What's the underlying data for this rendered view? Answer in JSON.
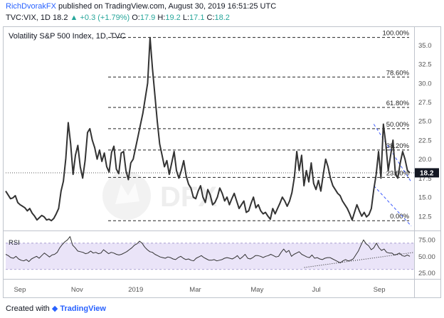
{
  "header": {
    "author": "RichDvorakFX",
    "published": "published on TradingView.com, August 30, 2019 16:51:25 UTC",
    "symbol": "TVC:VIX, 1D",
    "last": "18.2",
    "change": "+0.3 (+1.79%)",
    "o_label": "O:",
    "o_value": "17.9",
    "h_label": "H:",
    "h_value": "19.2",
    "l_label": "L:",
    "l_value": "17.1",
    "c_label": "C:",
    "c_value": "18.2"
  },
  "chart_title": "Volatility S&P 500 Index, 1D, TVC",
  "footer": {
    "created_with": "Created with",
    "brand": "TradingView"
  },
  "price_badge": "18.2",
  "colors": {
    "price_line": "#333333",
    "fib_line": "#222222",
    "trend_line": "#3d5afe",
    "rsi_band": "#e1d9f5",
    "badge": "#131722",
    "up": "#26a69a"
  },
  "chart_data": [
    {
      "type": "line",
      "series": [
        {
          "values": [
            15.8,
            15.3,
            14.8,
            14.9,
            15.2,
            14.3,
            14.0,
            13.8,
            13.6,
            13.2,
            13.5,
            12.9,
            12.5,
            12.0,
            12.3,
            12.6,
            12.4,
            12.0,
            12.1,
            11.9,
            12.2,
            12.8,
            13.5,
            15.8,
            17.1,
            20.1,
            24.8,
            22.0,
            18.0,
            20.5,
            21.8,
            19.0,
            17.5,
            19.8,
            23.5,
            24.0,
            22.5,
            21.5,
            20.0,
            21.2,
            19.7,
            20.8,
            19.0,
            18.3,
            20.9,
            21.7,
            18.7,
            18.1,
            20.8,
            21.0,
            18.5,
            17.3,
            19.5,
            20.0,
            21.5,
            23.0,
            24.5,
            26.0,
            28.0,
            30.0,
            36.0,
            32.0,
            28.5,
            25.0,
            22.0,
            20.5,
            19.0,
            19.8,
            18.0,
            19.5,
            21.0,
            18.5,
            17.5,
            18.5,
            19.8,
            17.8,
            16.7,
            16.2,
            15.0,
            14.8,
            15.8,
            16.5,
            15.0,
            14.3,
            16.0,
            15.3,
            14.0,
            14.3,
            15.0,
            16.2,
            15.5,
            14.5,
            15.0,
            14.0,
            14.8,
            15.5,
            14.5,
            13.5,
            14.0,
            14.5,
            13.0,
            13.2,
            14.2,
            15.0,
            13.6,
            14.0,
            13.2,
            12.8,
            13.0,
            12.5,
            12.1,
            13.5,
            12.8,
            13.5,
            14.2,
            15.0,
            14.5,
            13.8,
            14.5,
            15.6,
            17.6,
            21.0,
            18.5,
            20.5,
            16.5,
            18.5,
            17.0,
            19.5,
            16.8,
            16.0,
            17.2,
            15.8,
            18.0,
            20.0,
            19.0,
            17.5,
            16.5,
            16.0,
            15.5,
            15.2,
            14.5,
            14.0,
            13.5,
            12.8,
            12.0,
            13.0,
            14.0,
            13.2,
            12.5,
            13.0,
            12.4,
            12.7,
            13.5,
            16.0,
            18.0,
            21.0,
            17.5,
            24.6,
            22.0,
            18.5,
            20.5,
            22.5,
            18.0,
            17.5,
            19.5,
            21.0,
            20.0,
            18.5,
            18.2
          ],
          "color": "#333333"
        }
      ],
      "x_labels": [
        "Sep",
        "Nov",
        "2019",
        "Mar",
        "May",
        "Jul",
        "Sep"
      ],
      "y_ticks": [
        35.0,
        32.5,
        30.0,
        27.5,
        25.0,
        22.5,
        20.0,
        17.5,
        15.0,
        12.5
      ],
      "ylim": [
        10.8,
        37.0
      ],
      "fib_levels": [
        {
          "label": "100.00%",
          "value": 36.0
        },
        {
          "label": "78.60%",
          "value": 30.8
        },
        {
          "label": "61.80%",
          "value": 26.8
        },
        {
          "label": "50.00%",
          "value": 24.0
        },
        {
          "label": "38.20%",
          "value": 21.2
        },
        {
          "label": "23.60%",
          "value": 17.6
        },
        {
          "label": "0.00%",
          "value": 11.9
        }
      ],
      "last_price": 18.2
    },
    {
      "type": "line",
      "label": "RSI",
      "series": [
        {
          "values": [
            53,
            51,
            48,
            47,
            50,
            46,
            44,
            43,
            45,
            42,
            46,
            48,
            50,
            47,
            51,
            55,
            52,
            49,
            52,
            53,
            56,
            63,
            68,
            72,
            75,
            80,
            67,
            63,
            58,
            57,
            56,
            54,
            55,
            58,
            55,
            56,
            54,
            55,
            60,
            57,
            54,
            56,
            55,
            53,
            52,
            53,
            55,
            57,
            60,
            63,
            67,
            69,
            73,
            70,
            64,
            60,
            57,
            56,
            53,
            51,
            49,
            48,
            47,
            49,
            48,
            46,
            45,
            48,
            50,
            47,
            45,
            46,
            44,
            43,
            47,
            49,
            51,
            48,
            46,
            44,
            44,
            45,
            43,
            44,
            45,
            47,
            48,
            47,
            46,
            48,
            51,
            46,
            49,
            53,
            47,
            46,
            48,
            51,
            51,
            50,
            48,
            50,
            51,
            53,
            51,
            49,
            50,
            56,
            61,
            56,
            59,
            50,
            53,
            55,
            57,
            53,
            51,
            49,
            48,
            52,
            47,
            48,
            46,
            45,
            47,
            48,
            48,
            46,
            44,
            42,
            40,
            43,
            45,
            43,
            44,
            46,
            52,
            58,
            67,
            75,
            69,
            66,
            60,
            63,
            70,
            63,
            59,
            61,
            56,
            55,
            55,
            52,
            53,
            55,
            51,
            50,
            52,
            50
          ],
          "color": "#333333"
        }
      ],
      "y_ticks": [
        75.0,
        50.0,
        25.0
      ],
      "ylim": [
        20,
        86
      ],
      "band": [
        30,
        70
      ]
    }
  ]
}
